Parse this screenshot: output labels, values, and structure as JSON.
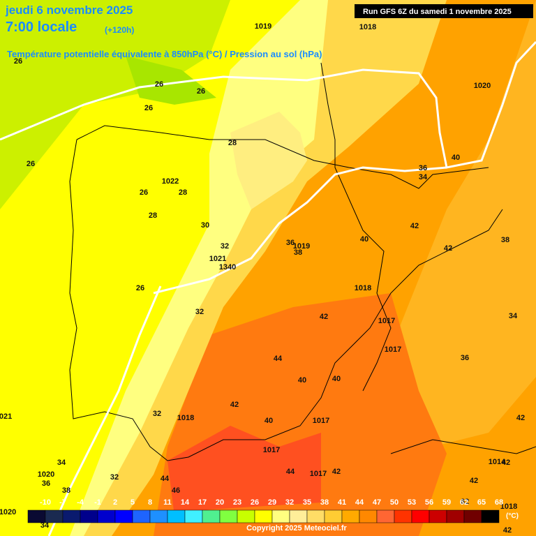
{
  "header": {
    "date": "jeudi 6 novembre 2025",
    "time": "7:00 locale",
    "lead": "(+120h)",
    "subtitle": "Température potentielle équivalente à 850hPa (°C) / Pression au sol (hPa)",
    "run": "Run GFS 6Z du samedi 1 novembre 2025"
  },
  "map": {
    "labels": [
      "1019",
      "1018",
      "26",
      "26",
      "26",
      "26",
      "1020",
      "28",
      "26",
      "40",
      "36",
      "34",
      "1022",
      "28",
      "26",
      "28",
      "30",
      "42",
      "32",
      "36",
      "1019",
      "38",
      "40",
      "42",
      "38",
      "1021",
      "1340",
      "26",
      "1018",
      "32",
      "42",
      "1017",
      "34",
      "1017",
      "44",
      "36",
      "40",
      "40",
      "42",
      "32",
      "1018",
      "40",
      "1017",
      "42",
      "1017",
      "34",
      "1014",
      "42",
      "44",
      "1017",
      "42",
      "1020",
      "32",
      "36",
      "38",
      "44",
      "46",
      "42",
      "62",
      "1018",
      "1020",
      "021",
      "42",
      "34"
    ]
  },
  "colorbar": {
    "labels": [
      -10,
      -7,
      -4,
      -1,
      2,
      5,
      8,
      11,
      14,
      17,
      20,
      23,
      26,
      29,
      32,
      35,
      38,
      41,
      44,
      47,
      50,
      53,
      56,
      59,
      62,
      65,
      68
    ],
    "colors": [
      "#0a0a32",
      "#1a2a50",
      "#0a1a6e",
      "#00008c",
      "#0000cd",
      "#0000ff",
      "#1e64ff",
      "#1e90ff",
      "#00bfff",
      "#40f0ff",
      "#50f090",
      "#80ff40",
      "#c8ff00",
      "#ffff00",
      "#ffff80",
      "#ffee99",
      "#ffdd66",
      "#ffcc33",
      "#ffaa00",
      "#ff8800",
      "#ff6633",
      "#ff3300",
      "#ff0000",
      "#cc0000",
      "#a00000",
      "#700000",
      "#000000"
    ],
    "unit": "(°C)"
  },
  "footer": {
    "copyright": "Copyright 2025 Meteociel.fr"
  }
}
